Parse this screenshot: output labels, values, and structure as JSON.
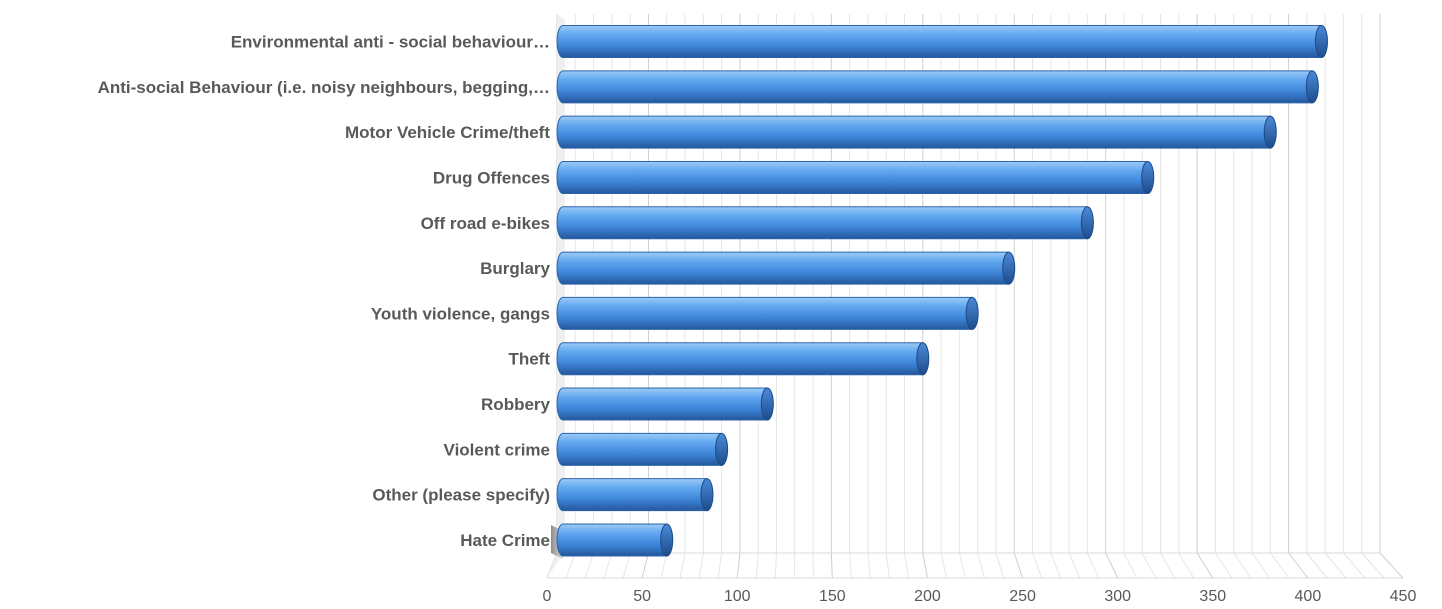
{
  "chart_data": {
    "type": "bar",
    "orientation": "horizontal",
    "style": "3d-cylinder",
    "title": "",
    "xlabel": "",
    "ylabel": "",
    "categories": [
      "Environmental anti - social behaviour…",
      "Anti-social Behaviour (i.e. noisy neighbours, begging,…",
      "Motor Vehicle Crime/theft",
      "Drug Offences",
      "Off road e-bikes",
      "Burglary",
      "Youth violence, gangs",
      "Theft",
      "Robbery",
      "Violent crime",
      "Other (please specify)",
      "Hate Crime"
    ],
    "values": [
      418,
      413,
      390,
      323,
      290,
      247,
      227,
      200,
      115,
      90,
      82,
      60
    ],
    "xlim": [
      0,
      450
    ],
    "xticks": [
      0,
      50,
      100,
      150,
      200,
      250,
      300,
      350,
      400,
      450
    ],
    "grid": true,
    "bar_color": "#4a8fe0",
    "legend": "none"
  }
}
